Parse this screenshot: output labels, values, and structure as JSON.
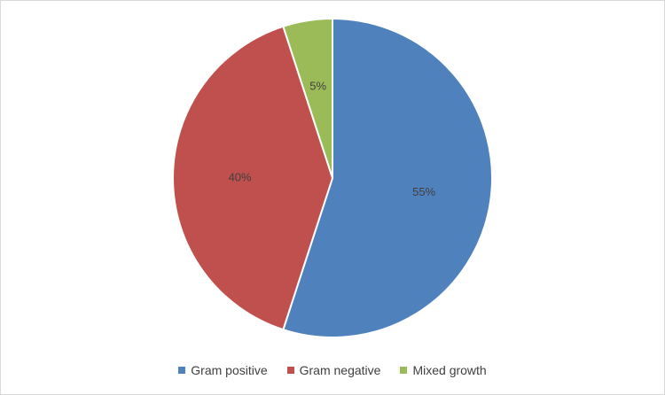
{
  "chart_data": {
    "type": "pie",
    "title": "",
    "categories": [
      "Gram positive",
      "Gram negative",
      "Mixed growth"
    ],
    "values": [
      55,
      40,
      5
    ],
    "labels": [
      "55%",
      "40%",
      "5%"
    ],
    "colors": [
      "#4f81bd",
      "#c0504d",
      "#9bbb59"
    ],
    "legend_position": "bottom",
    "start": "top, clockwise"
  }
}
